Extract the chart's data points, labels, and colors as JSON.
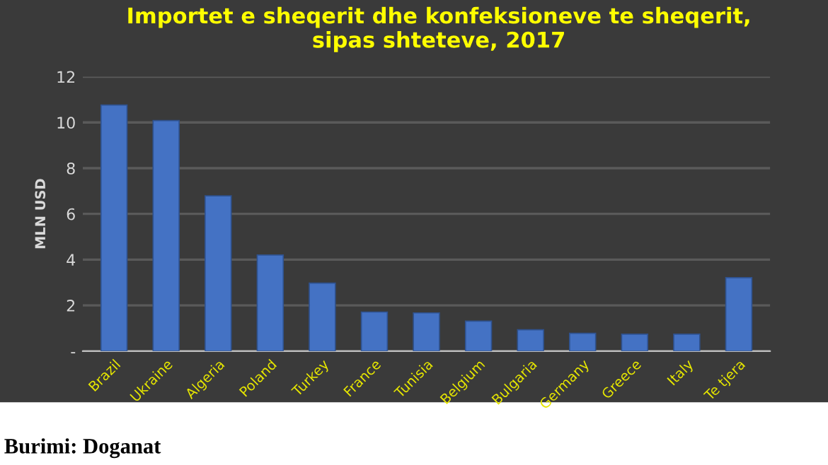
{
  "chart_data": {
    "type": "bar",
    "title": "Importet e sheqerit dhe konfeksioneve te sheqerit,\nsipas shteteve, 2017",
    "ylabel": "MLN USD",
    "categories": [
      "Brazil",
      "Ukraine",
      "Algeria",
      "Poland",
      "Turkey",
      "France",
      "Tunisia",
      "Belgium",
      "Bulgaria",
      "Germany",
      "Greece",
      "Italy",
      "Te tjera"
    ],
    "values": [
      10.76,
      10.08,
      6.79,
      4.2,
      2.97,
      1.71,
      1.67,
      1.31,
      0.93,
      0.78,
      0.74,
      0.74,
      3.21
    ],
    "color": "#4472c4",
    "ylim": [
      0,
      12
    ],
    "yticks": [
      {
        "value": 0,
        "label": "-"
      },
      2,
      4,
      6,
      8,
      10,
      12
    ],
    "grid": "y",
    "annotations": [
      "Burimi: Doganat"
    ]
  }
}
